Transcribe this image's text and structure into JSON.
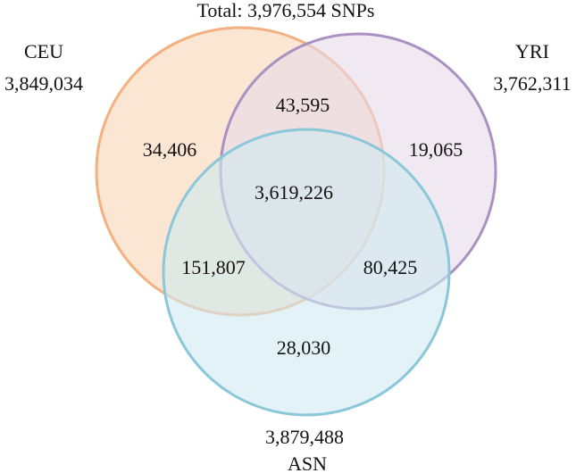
{
  "title": "Total: 3,976,554 SNPs",
  "sets": [
    {
      "name": "CEU",
      "total": "3,849,034",
      "fill": "#f8d3b6",
      "stroke": "#f3b081"
    },
    {
      "name": "YRI",
      "total": "3,762,311",
      "fill": "#e7dbea",
      "stroke": "#ab91c2"
    },
    {
      "name": "ASN",
      "total": "3,879,488",
      "fill": "#cfe9f0",
      "stroke": "#8ac7d8"
    }
  ],
  "regions": {
    "ceu_only": "34,406",
    "yri_only": "19,065",
    "asn_only": "28,030",
    "ceu_yri": "43,595",
    "ceu_asn": "151,807",
    "yri_asn": "80,425",
    "all": "3,619,226"
  }
}
